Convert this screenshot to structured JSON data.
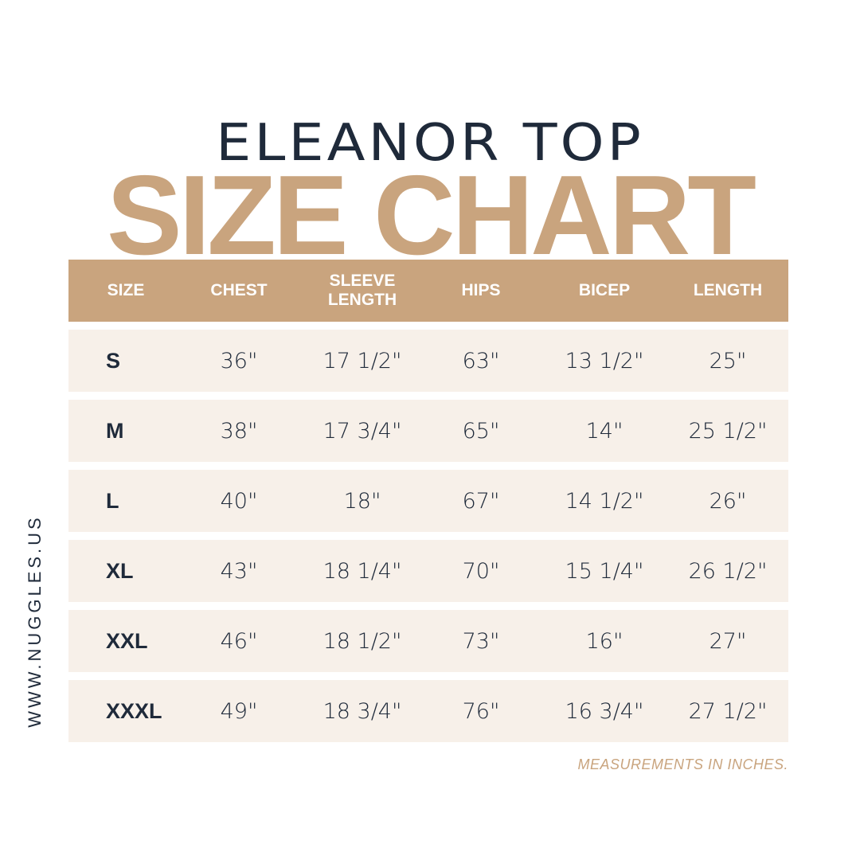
{
  "header": {
    "title": "ELEANOR TOP",
    "subtitle": "SIZE CHART"
  },
  "table": {
    "columns": [
      "SIZE",
      "CHEST",
      "SLEEVE LENGTH",
      "HIPS",
      "BICEP",
      "LENGTH"
    ],
    "rows": [
      [
        "S",
        "36\"",
        "17 1/2\"",
        "63\"",
        "13 1/2\"",
        "25\""
      ],
      [
        "M",
        "38\"",
        "17 3/4\"",
        "65\"",
        "14\"",
        "25 1/2\""
      ],
      [
        "L",
        "40\"",
        "18\"",
        "67\"",
        "14 1/2\"",
        "26\""
      ],
      [
        "XL",
        "43\"",
        "18 1/4\"",
        "70\"",
        "15 1/4\"",
        "26 1/2\""
      ],
      [
        "XXL",
        "46\"",
        "18 1/2\"",
        "73\"",
        "16\"",
        "27\""
      ],
      [
        "XXXL",
        "49\"",
        "18 3/4\"",
        "76\"",
        "16 3/4\"",
        "27 1/2\""
      ]
    ]
  },
  "footnote": "MEASUREMENTS IN INCHES.",
  "website": "WWW.NUGGLES.US"
}
